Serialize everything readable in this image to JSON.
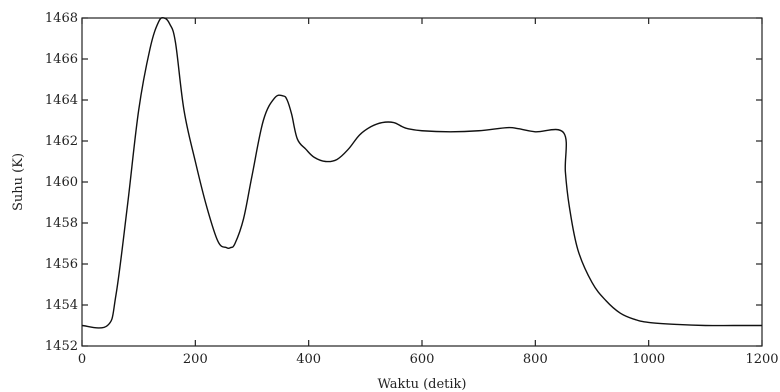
{
  "chart_data": {
    "type": "line",
    "title": "",
    "xlabel": "Waktu (detik)",
    "ylabel": "Suhu (K)",
    "xlim": [
      0,
      1200
    ],
    "ylim": [
      1452,
      1468
    ],
    "x_ticks": [
      0,
      200,
      400,
      600,
      800,
      1000,
      1200
    ],
    "y_ticks": [
      1452,
      1454,
      1456,
      1458,
      1460,
      1462,
      1464,
      1466,
      1468
    ],
    "grid": false,
    "legend": "none",
    "series": [
      {
        "x": [
          0,
          45,
          60,
          80,
          100,
          120,
          135,
          145,
          155,
          165,
          180,
          200,
          220,
          240,
          255,
          262,
          270,
          285,
          300,
          320,
          340,
          355,
          362,
          370,
          380,
          395,
          410,
          430,
          450,
          470,
          490,
          510,
          530,
          550,
          565,
          575,
          600,
          650,
          700,
          750,
          770,
          800,
          850,
          853,
          860,
          875,
          900,
          925,
          950,
          975,
          1000,
          1050,
          1100,
          1150,
          1200
        ],
        "y": [
          1453,
          1453,
          1454.5,
          1458.8,
          1463.5,
          1466.5,
          1467.8,
          1468.0,
          1467.7,
          1466.8,
          1463.5,
          1461.0,
          1458.8,
          1457.1,
          1456.8,
          1456.8,
          1457.0,
          1458.2,
          1460.3,
          1463.0,
          1464.1,
          1464.2,
          1464.0,
          1463.3,
          1462.1,
          1461.6,
          1461.2,
          1461.0,
          1461.1,
          1461.6,
          1462.3,
          1462.7,
          1462.9,
          1462.9,
          1462.7,
          1462.6,
          1462.5,
          1462.45,
          1462.5,
          1462.65,
          1462.6,
          1462.45,
          1462.4,
          1460.5,
          1458.8,
          1456.7,
          1455.1,
          1454.2,
          1453.6,
          1453.3,
          1453.15,
          1453.05,
          1453.0,
          1453.0,
          1453.0
        ]
      }
    ]
  }
}
